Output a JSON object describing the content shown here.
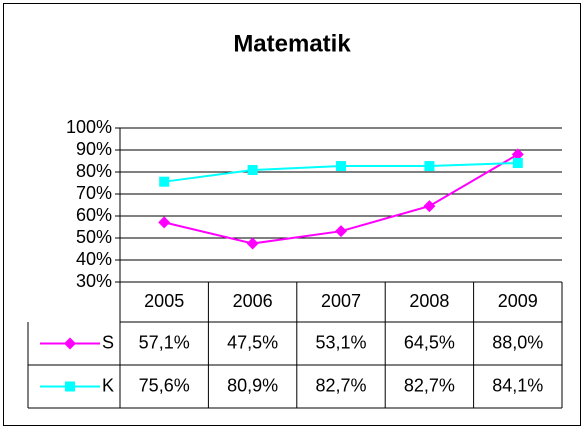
{
  "chart_data": {
    "type": "line",
    "title": "Matematik",
    "categories": [
      "2005",
      "2006",
      "2007",
      "2008",
      "2009"
    ],
    "series": [
      {
        "name": "S",
        "color": "#ff00ff",
        "marker": "diamond",
        "values": [
          57.1,
          47.5,
          53.1,
          64.5,
          88.0
        ],
        "value_labels": [
          "57,1%",
          "47,5%",
          "53,1%",
          "64,5%",
          "88,0%"
        ]
      },
      {
        "name": "K",
        "color": "#00ffff",
        "marker": "square",
        "values": [
          75.6,
          80.9,
          82.7,
          82.7,
          84.1
        ],
        "value_labels": [
          "75,6%",
          "80,9%",
          "82,7%",
          "82,7%",
          "84,1%"
        ]
      }
    ],
    "ylim": [
      30,
      100
    ],
    "yticks": [
      {
        "value": 30,
        "label": "30%"
      },
      {
        "value": 40,
        "label": "40%"
      },
      {
        "value": 50,
        "label": "50%"
      },
      {
        "value": 60,
        "label": "60%"
      },
      {
        "value": 70,
        "label": "70%"
      },
      {
        "value": 80,
        "label": "80%"
      },
      {
        "value": 90,
        "label": "90%"
      },
      {
        "value": 100,
        "label": "100%"
      }
    ],
    "grid": true
  }
}
